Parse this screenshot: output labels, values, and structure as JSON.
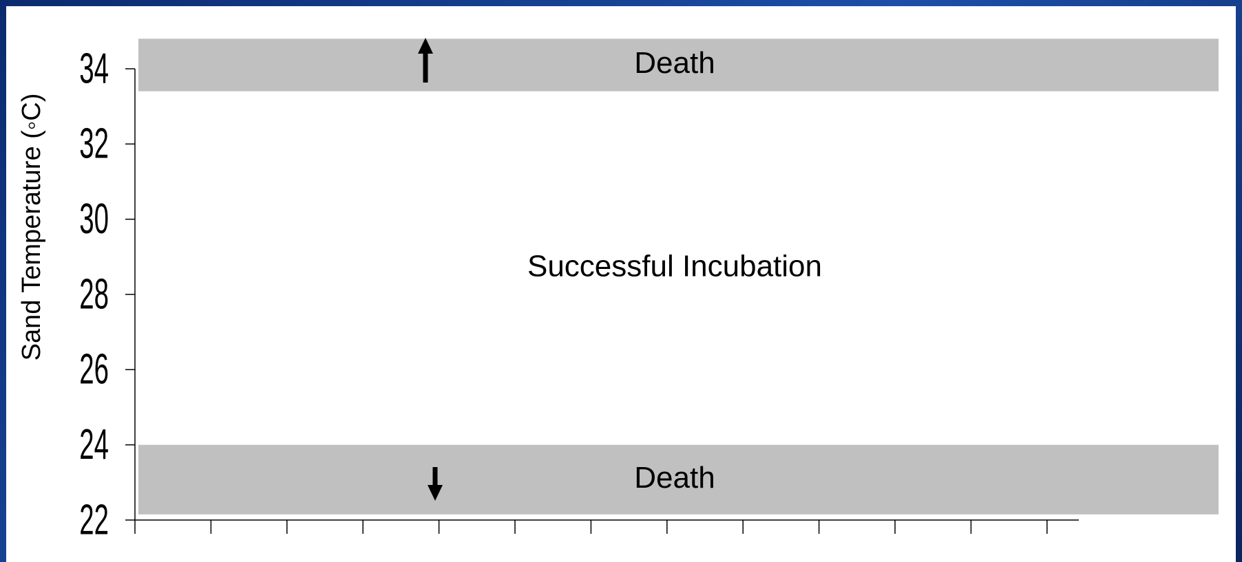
{
  "chart_data": {
    "type": "band",
    "ylabel": "Sand Temperature (◦C)",
    "ylim": [
      22,
      34.8
    ],
    "yticks": [
      22,
      24,
      26,
      28,
      30,
      32,
      34
    ],
    "categories": [
      null,
      null,
      null,
      null,
      null,
      null,
      null,
      null,
      null,
      null,
      null,
      null,
      null
    ],
    "bands": [
      {
        "label": "Death",
        "range": [
          33.4,
          34.8
        ],
        "color": "#c0c0c0"
      },
      {
        "label": "Successful Incubation",
        "range": [
          24,
          33.4
        ],
        "color": "#ffffff"
      },
      {
        "label": "Death",
        "range": [
          22.15,
          24
        ],
        "color": "#c0c0c0"
      }
    ]
  }
}
